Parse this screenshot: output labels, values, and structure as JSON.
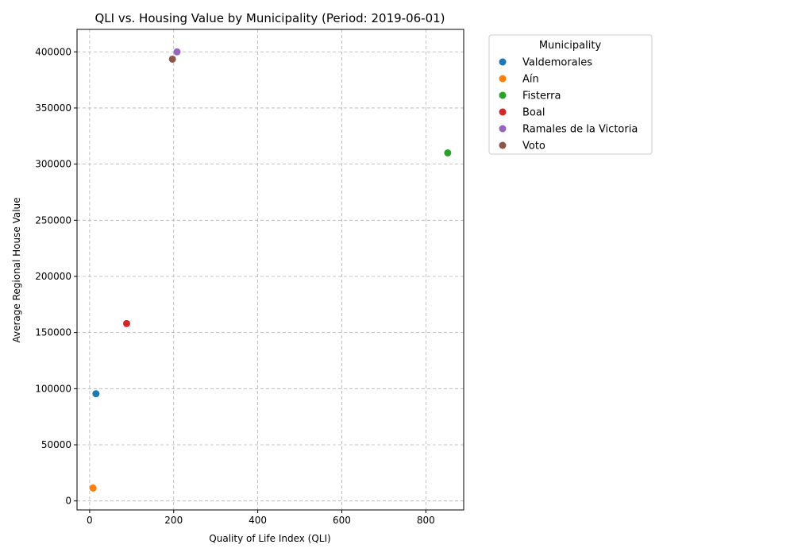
{
  "chart_data": {
    "type": "scatter",
    "title": "QLI vs. Housing Value by Municipality (Period: 2019-06-01)",
    "xlabel": "Quality of Life Index (QLI)",
    "ylabel": "Average Regional House Value",
    "xlim": [
      -30,
      890
    ],
    "ylim": [
      -8000,
      420000
    ],
    "xticks": [
      0,
      200,
      400,
      600,
      800
    ],
    "yticks": [
      0,
      50000,
      100000,
      150000,
      200000,
      250000,
      300000,
      350000,
      400000
    ],
    "grid": true,
    "legend": {
      "title": "Municipality",
      "placement": "outside-right"
    },
    "series": [
      {
        "name": "Valdemorales",
        "color": "#1f77b4",
        "points": [
          {
            "x": 15,
            "y": 95500
          }
        ]
      },
      {
        "name": "Aín",
        "color": "#ff7f0e",
        "points": [
          {
            "x": 8,
            "y": 11500
          }
        ]
      },
      {
        "name": "Fisterra",
        "color": "#2ca02c",
        "points": [
          {
            "x": 852,
            "y": 310000
          }
        ]
      },
      {
        "name": "Boal",
        "color": "#d62728",
        "points": [
          {
            "x": 88,
            "y": 158000
          }
        ]
      },
      {
        "name": "Ramales de la Victoria",
        "color": "#9467bd",
        "points": [
          {
            "x": 208,
            "y": 400000
          }
        ]
      },
      {
        "name": "Voto",
        "color": "#8c564b",
        "points": [
          {
            "x": 197,
            "y": 393500
          }
        ]
      }
    ]
  }
}
